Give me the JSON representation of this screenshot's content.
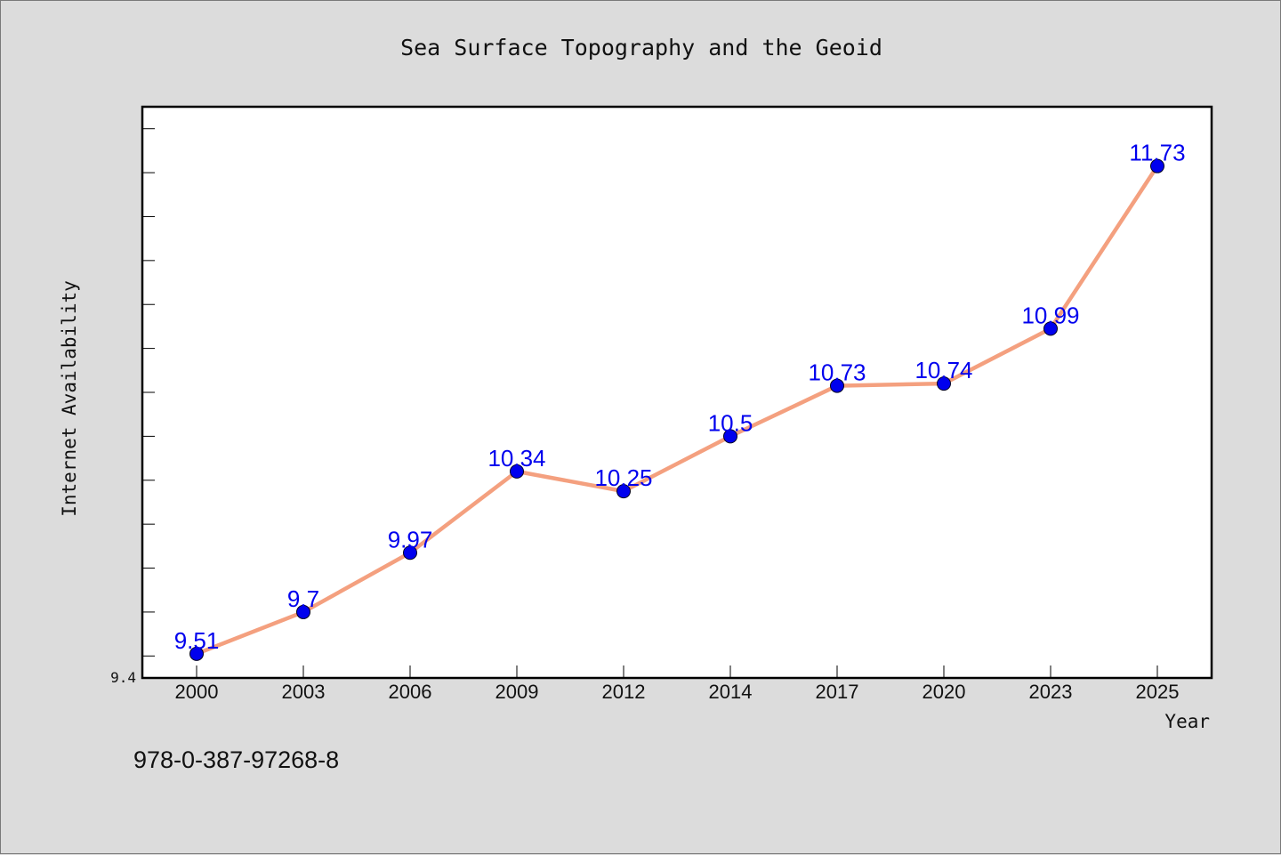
{
  "chart_data": {
    "type": "line",
    "title": "Sea Surface Topography and the Geoid",
    "xlabel": "Year",
    "ylabel": "Internet Availability",
    "categories": [
      "2000",
      "2003",
      "2006",
      "2009",
      "2012",
      "2014",
      "2017",
      "2020",
      "2023",
      "2025"
    ],
    "values": [
      9.51,
      9.7,
      9.97,
      10.34,
      10.25,
      10.5,
      10.73,
      10.74,
      10.99,
      11.73
    ],
    "data_labels": [
      "9.51",
      "9.7",
      "9.97",
      "10.34",
      "10.25",
      "10.5",
      "10.73",
      "10.74",
      "10.99",
      "11.73"
    ],
    "ylim": [
      9.4,
      12.0
    ],
    "y_min_label": "9.4",
    "grid": false,
    "line_color": "#f4a07f",
    "marker_color": "#0000ee",
    "label_color": "#0000ee"
  },
  "footer": {
    "isbn": "978-0-387-97268-8"
  }
}
